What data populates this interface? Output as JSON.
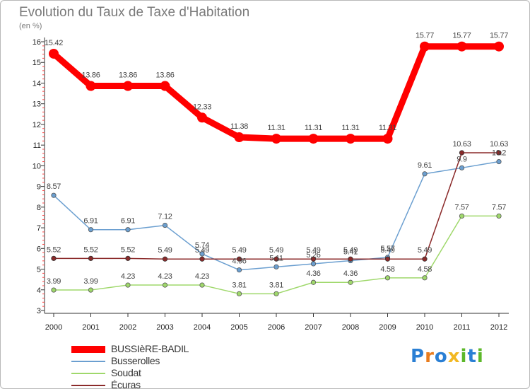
{
  "chart_data": {
    "type": "line",
    "title": "Evolution du Taux de Taxe d'Habitation",
    "subtitle": "(en %)",
    "x": [
      "2000",
      "2001",
      "2002",
      "2003",
      "2004",
      "2005",
      "2006",
      "2007",
      "2008",
      "2009",
      "2010",
      "2011",
      "2012"
    ],
    "ylim": [
      3,
      16
    ],
    "yticks": [
      3,
      4,
      5,
      6,
      7,
      8,
      9,
      10,
      11,
      12,
      13,
      14,
      15,
      16
    ],
    "grid": false,
    "legend_position": "bottom-left",
    "series": [
      {
        "name": "BUSSIèRE-BADIL",
        "color": "#ff0000",
        "values": [
          15.42,
          13.86,
          13.86,
          13.86,
          12.33,
          11.38,
          11.31,
          11.31,
          11.31,
          11.31,
          15.77,
          15.77,
          15.77
        ],
        "labels": [
          "15.42",
          "13.86",
          "13.86",
          "13.86",
          "12.33",
          "11.38",
          "11.31",
          "11.31",
          "11.31",
          "11.31",
          "15.77",
          "15.77",
          "15.77"
        ]
      },
      {
        "name": "Busserolles",
        "color": "#6b9fd0",
        "values": [
          8.57,
          6.91,
          6.91,
          7.12,
          5.74,
          4.96,
          5.11,
          5.26,
          5.41,
          5.57,
          9.61,
          9.9,
          10.2
        ],
        "labels": [
          "8.57",
          "6.91",
          "6.91",
          "7.12",
          "5.74",
          "4.96",
          "5.11",
          "5.26",
          "5.41",
          "5.57",
          "9.61",
          "9.9",
          "10.2"
        ]
      },
      {
        "name": "Soudat",
        "color": "#9fd86b",
        "values": [
          3.99,
          3.99,
          4.23,
          4.23,
          4.23,
          3.81,
          3.81,
          4.36,
          4.36,
          4.58,
          4.58,
          7.57,
          7.57
        ],
        "labels": [
          "3.99",
          "3.99",
          "4.23",
          "4.23",
          "4.23",
          "3.81",
          "3.81",
          "4.36",
          "4.36",
          "4.58",
          "4.58",
          "7.57",
          "7.57"
        ]
      },
      {
        "name": "Écuras",
        "color": "#8b2a2a",
        "values": [
          5.52,
          5.52,
          5.52,
          5.49,
          5.49,
          5.49,
          5.49,
          5.49,
          5.49,
          5.49,
          5.49,
          10.63,
          10.63
        ],
        "labels": [
          "5.52",
          "5.52",
          "5.52",
          "5.49",
          "5.49",
          "5.49",
          "5.49",
          "5.49",
          "5.49",
          "5.49",
          "5.49",
          "10.63",
          "10.63"
        ]
      }
    ]
  },
  "logo": {
    "text": "Proxiti",
    "letter_colors": [
      "#2a7fd4",
      "#e87c1e",
      "#2a7fd4",
      "#f2b823",
      "#5cb82a",
      "#2a7fd4",
      "#5cb82a"
    ]
  }
}
